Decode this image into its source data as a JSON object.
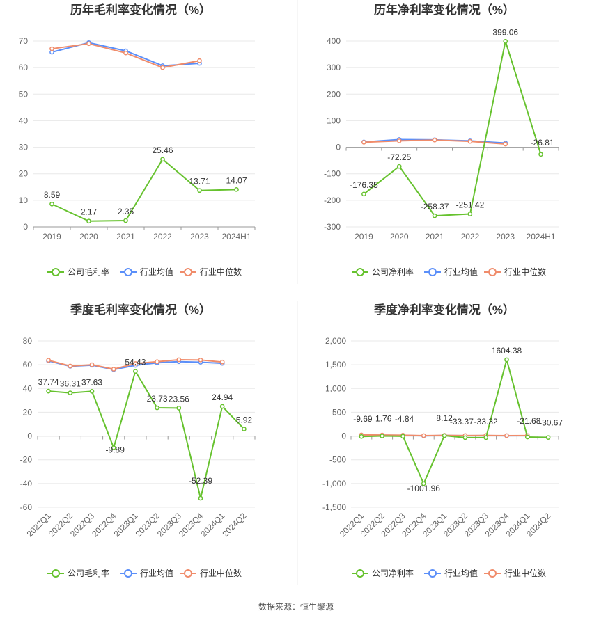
{
  "source": "数据来源：恒生聚源",
  "legend_colors": {
    "company": "#66c22e",
    "avg": "#5b8ff9",
    "median": "#f08c6b"
  },
  "chart_data": [
    {
      "type": "line",
      "title": "历年毛利率变化情况（%）",
      "categories": [
        "2019",
        "2020",
        "2021",
        "2022",
        "2023",
        "2024H1"
      ],
      "ylim": [
        0,
        70
      ],
      "yticks": [
        "0",
        "10",
        "20",
        "30",
        "40",
        "50",
        "60",
        "70"
      ],
      "ytick_values": [
        0,
        10,
        20,
        30,
        40,
        50,
        60,
        70
      ],
      "grid": true,
      "legend_position": "bottom",
      "series": [
        {
          "name": "公司毛利率",
          "values": [
            8.59,
            2.17,
            2.35,
            25.46,
            13.71,
            14.07
          ],
          "labels": [
            "8.59",
            "2.17",
            "2.35",
            "25.46",
            "13.71",
            "14.07"
          ]
        },
        {
          "name": "行业均值",
          "values": [
            65.8,
            69.4,
            66.3,
            60.7,
            61.6,
            null
          ]
        },
        {
          "name": "行业中位数",
          "values": [
            67.1,
            69.0,
            65.5,
            60.0,
            62.6,
            null
          ]
        }
      ]
    },
    {
      "type": "line",
      "title": "历年净利率变化情况（%）",
      "categories": [
        "2019",
        "2020",
        "2021",
        "2022",
        "2023",
        "2024H1"
      ],
      "ylim": [
        -300,
        400
      ],
      "yticks": [
        "-300",
        "-200",
        "-100",
        "0",
        "100",
        "200",
        "300",
        "400"
      ],
      "ytick_values": [
        -300,
        -200,
        -100,
        0,
        100,
        200,
        300,
        400
      ],
      "grid": true,
      "legend_position": "bottom",
      "series": [
        {
          "name": "公司净利率",
          "values": [
            -176.35,
            -72.25,
            -258.37,
            -251.42,
            399.06,
            -26.81
          ],
          "labels": [
            "-176.35",
            "-72.25",
            "-258.37",
            "-251.42",
            "399.06",
            "-26.81"
          ]
        },
        {
          "name": "行业均值",
          "values": [
            20,
            29,
            28,
            24,
            16,
            null
          ]
        },
        {
          "name": "行业中位数",
          "values": [
            19,
            24,
            27,
            22,
            12,
            null
          ]
        }
      ]
    },
    {
      "type": "line",
      "title": "季度毛利率变化情况（%）",
      "categories": [
        "2022Q1",
        "2022Q2",
        "2022Q3",
        "2022Q4",
        "2023Q1",
        "2023Q2",
        "2023Q3",
        "2023Q4",
        "2024Q1",
        "2024Q2"
      ],
      "ylim": [
        -60,
        80
      ],
      "yticks": [
        "-60",
        "-40",
        "-20",
        "0",
        "20",
        "40",
        "60",
        "80"
      ],
      "ytick_values": [
        -60,
        -40,
        -20,
        0,
        20,
        40,
        60,
        80
      ],
      "grid": true,
      "legend_position": "bottom",
      "series": [
        {
          "name": "公司毛利率",
          "values": [
            37.74,
            36.31,
            37.63,
            -9.89,
            54.43,
            23.73,
            23.56,
            -52.39,
            24.94,
            5.92
          ],
          "labels": [
            "37.74",
            "36.31",
            "37.63",
            "-9.89",
            "54.43",
            "23.73",
            "23.56",
            "-52.39",
            "24.94",
            "5.92"
          ]
        },
        {
          "name": "行业均值",
          "values": [
            63.2,
            58.7,
            59.6,
            55.9,
            59.5,
            61.6,
            62.6,
            62.1,
            61.2,
            null
          ]
        },
        {
          "name": "行业中位数",
          "values": [
            63.8,
            58.9,
            60.0,
            56.3,
            61.0,
            62.6,
            64.2,
            64.0,
            62.3,
            null
          ]
        }
      ]
    },
    {
      "type": "line",
      "title": "季度净利率变化情况（%）",
      "categories": [
        "2022Q1",
        "2022Q2",
        "2022Q3",
        "2022Q4",
        "2023Q1",
        "2023Q2",
        "2023Q3",
        "2023Q4",
        "2024Q1",
        "2024Q2"
      ],
      "ylim": [
        -1500,
        2000
      ],
      "yticks": [
        "-1,500",
        "-1,000",
        "-500",
        "0",
        "500",
        "1,000",
        "1,500",
        "2,000"
      ],
      "ytick_values": [
        -1500,
        -1000,
        -500,
        0,
        500,
        1000,
        1500,
        2000
      ],
      "grid": true,
      "legend_position": "bottom",
      "series": [
        {
          "name": "公司净利率",
          "values": [
            -9.69,
            1.76,
            -4.84,
            -1001.96,
            8.12,
            -33.37,
            -33.32,
            1604.38,
            -21.68,
            -30.67
          ],
          "labels": [
            "-9.69",
            "1.76",
            "-4.84",
            "-1001.96",
            "8.12",
            "-33.37",
            "-33.32",
            "1604.38",
            "-21.68",
            "-30.67"
          ]
        },
        {
          "name": "行业均值",
          "values": [
            20,
            18,
            15,
            5,
            12,
            8,
            10,
            6,
            8,
            null
          ]
        },
        {
          "name": "行业中位数",
          "values": [
            24,
            21,
            17,
            8,
            14,
            10,
            12,
            8,
            10,
            null
          ]
        }
      ]
    }
  ]
}
